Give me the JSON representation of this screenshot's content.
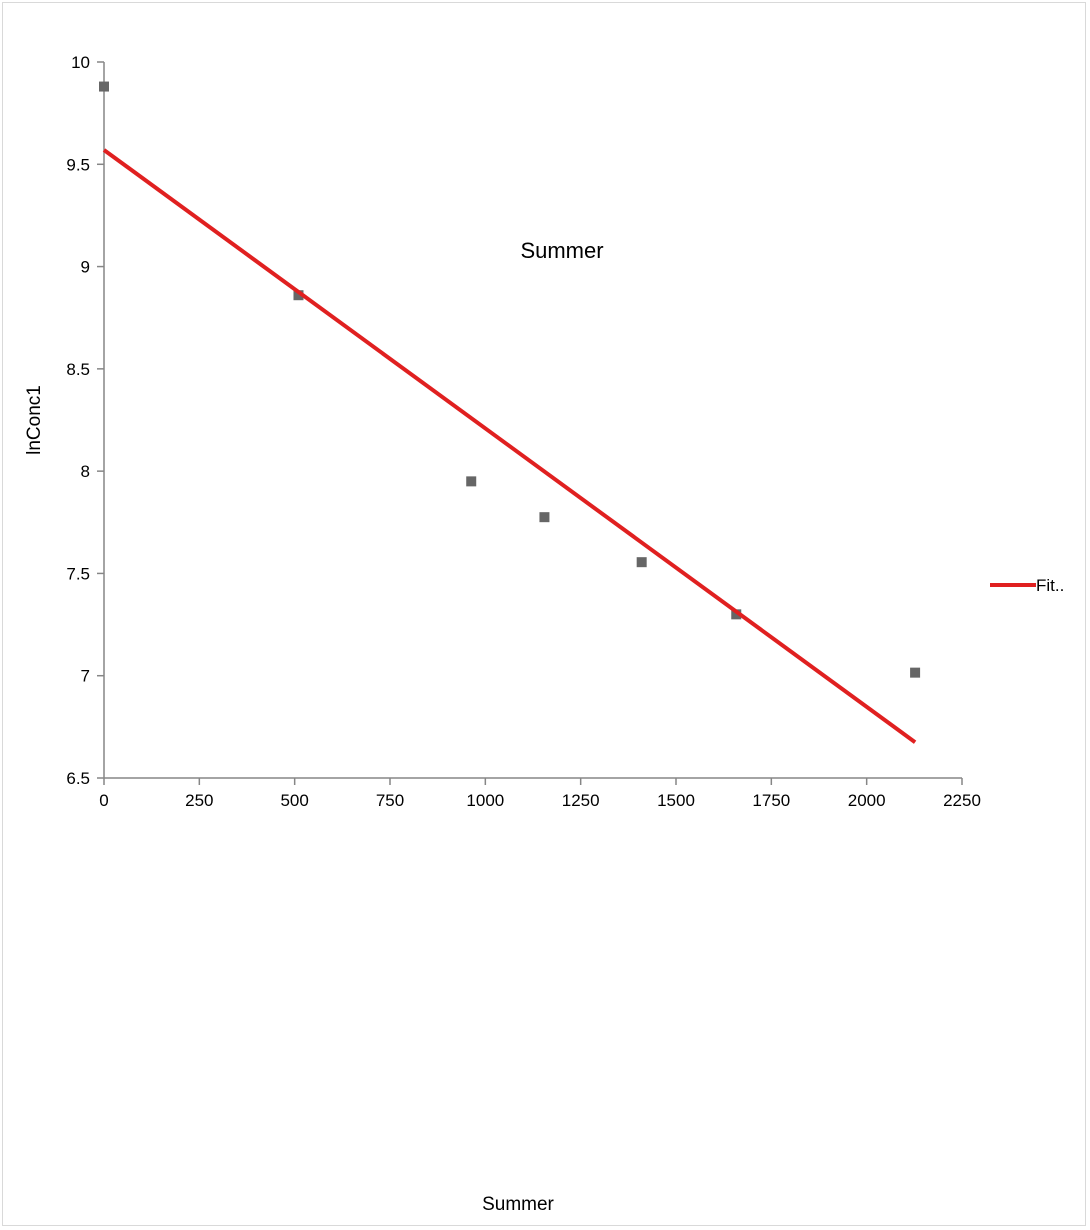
{
  "chart_data": {
    "type": "scatter",
    "title": "",
    "annotation": "Summer",
    "xlabel": "Summer",
    "ylabel": "lnConc1",
    "xlim": [
      0,
      2250
    ],
    "ylim": [
      6.5,
      10
    ],
    "xticks": [
      0,
      250,
      500,
      750,
      1000,
      1250,
      1500,
      1750,
      2000,
      2250
    ],
    "yticks": [
      6.5,
      7,
      7.5,
      8,
      8.5,
      9,
      9.5,
      10
    ],
    "grid": false,
    "legend_position": "right",
    "series": [
      {
        "kind": "scatter",
        "color": "#666666",
        "marker": "square",
        "points": [
          {
            "x": 0,
            "y": 9.88
          },
          {
            "x": 510,
            "y": 8.86
          },
          {
            "x": 963,
            "y": 7.95
          },
          {
            "x": 1155,
            "y": 7.775
          },
          {
            "x": 1410,
            "y": 7.555
          },
          {
            "x": 1658,
            "y": 7.3
          },
          {
            "x": 2127,
            "y": 7.015
          }
        ]
      },
      {
        "kind": "line",
        "name": "Fit..",
        "color": "#e02020",
        "points": [
          {
            "x": 0,
            "y": 9.57
          },
          {
            "x": 2127,
            "y": 6.675
          }
        ]
      }
    ]
  }
}
